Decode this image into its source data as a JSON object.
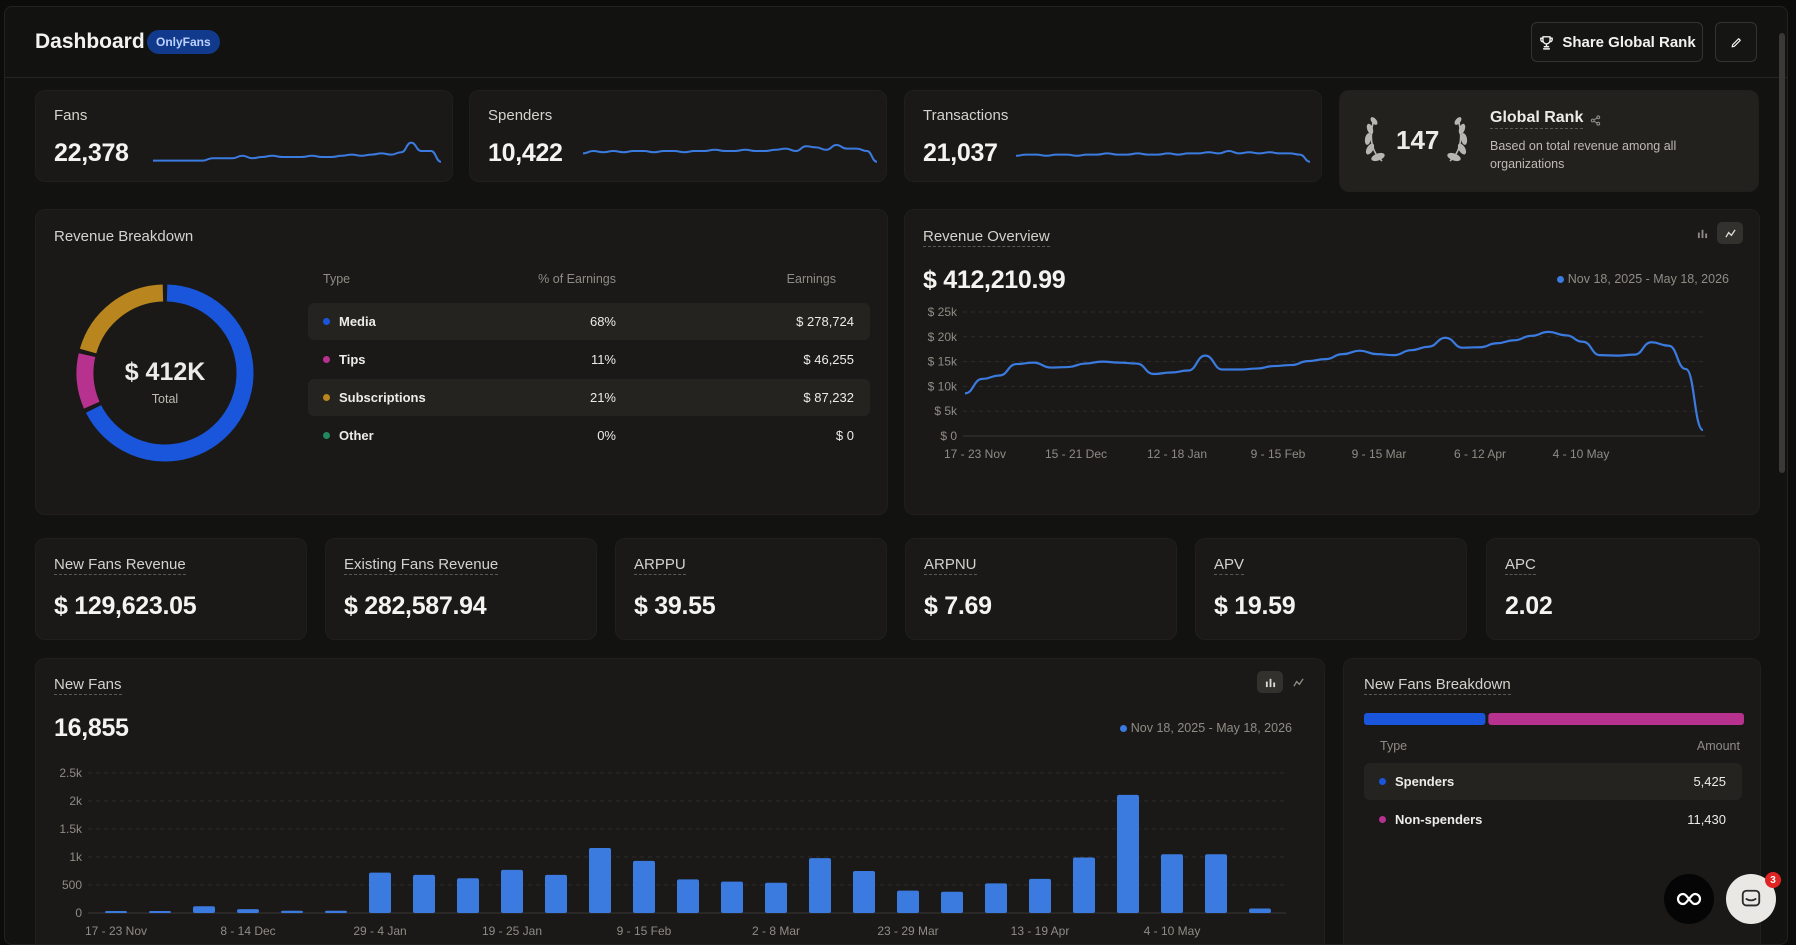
{
  "header": {
    "title": "Dashboard",
    "badge": "OnlyFans",
    "share_label": "Share Global Rank"
  },
  "stats": [
    {
      "label": "Fans",
      "value": "22,378",
      "trend": [
        0.1,
        0.1,
        0.1,
        0.1,
        0.1,
        0.1,
        0.2,
        0.2,
        0.2,
        0.3,
        0.2,
        0.25,
        0.3,
        0.25,
        0.25,
        0.25,
        0.3,
        0.25,
        0.25,
        0.3,
        0.35,
        0.3,
        0.35,
        0.4,
        0.35,
        0.45,
        0.85,
        0.5,
        0.5,
        0.05
      ]
    },
    {
      "label": "Spenders",
      "value": "10,422",
      "trend": [
        0.4,
        0.5,
        0.45,
        0.5,
        0.45,
        0.5,
        0.5,
        0.45,
        0.5,
        0.5,
        0.45,
        0.5,
        0.5,
        0.55,
        0.5,
        0.5,
        0.55,
        0.5,
        0.5,
        0.55,
        0.6,
        0.5,
        0.7,
        0.65,
        0.55,
        0.75,
        0.6,
        0.6,
        0.5,
        0.05
      ]
    },
    {
      "label": "Transactions",
      "value": "21,037",
      "trend": [
        0.3,
        0.35,
        0.35,
        0.3,
        0.35,
        0.35,
        0.3,
        0.35,
        0.35,
        0.4,
        0.35,
        0.35,
        0.4,
        0.35,
        0.35,
        0.4,
        0.35,
        0.4,
        0.4,
        0.45,
        0.4,
        0.5,
        0.4,
        0.45,
        0.4,
        0.45,
        0.4,
        0.4,
        0.35,
        0.05
      ]
    }
  ],
  "global_rank": {
    "rank": "147",
    "title": "Global Rank",
    "desc": "Based on total revenue among all organizations"
  },
  "revenue_breakdown": {
    "title": "Revenue Breakdown",
    "total": "$ 412K",
    "total_label": "Total",
    "columns": [
      "Type",
      "% of Earnings",
      "Earnings"
    ],
    "rows": [
      {
        "type": "Media",
        "pct": "68%",
        "earnings": "$ 278,724",
        "color": "#1a56db"
      },
      {
        "type": "Tips",
        "pct": "11%",
        "earnings": "$ 46,255",
        "color": "#b7318f"
      },
      {
        "type": "Subscriptions",
        "pct": "21%",
        "earnings": "$ 87,232",
        "color": "#b8851f"
      },
      {
        "type": "Other",
        "pct": "0%",
        "earnings": "$ 0",
        "color": "#20895f"
      }
    ]
  },
  "chart_data": [
    {
      "type": "pie",
      "title": "Revenue Breakdown",
      "categories": [
        "Media",
        "Tips",
        "Subscriptions",
        "Other"
      ],
      "values": [
        68,
        11,
        21,
        0
      ],
      "colors": [
        "#1a56db",
        "#b7318f",
        "#b8851f",
        "#20895f"
      ]
    },
    {
      "type": "line",
      "title": "Revenue Overview",
      "x_ticks": [
        "17 - 23 Nov",
        "15 - 21 Dec",
        "12 - 18 Jan",
        "9 - 15 Feb",
        "9 - 15 Mar",
        "6 - 12 Apr",
        "4 - 10 May"
      ],
      "y_ticks": [
        "$ 0",
        "$ 5k",
        "$ 10k",
        "$ 15k",
        "$ 20k",
        "$ 25k"
      ],
      "ylim": [
        0,
        25000
      ],
      "series": [
        {
          "values": [
            8600,
            11500,
            12200,
            14500,
            14800,
            13800,
            13900,
            14600,
            15000,
            14800,
            14600,
            12500,
            12800,
            13200,
            16200,
            13400,
            13400,
            13600,
            14100,
            14300,
            15100,
            15500,
            16500,
            17200,
            16500,
            16300,
            17300,
            18000,
            19800,
            17800,
            17900,
            18700,
            19300,
            20200,
            21000,
            20300,
            19000,
            16300,
            16200,
            16400,
            18900,
            18200,
            13500,
            1200
          ]
        }
      ],
      "range": "Nov 18, 2025 - May 18, 2026",
      "grid": true
    },
    {
      "type": "bar",
      "title": "New Fans",
      "x_ticks": [
        "17 - 23 Nov",
        "8 - 14 Dec",
        "29 - 4 Jan",
        "19 - 25 Jan",
        "9 - 15 Feb",
        "2 - 8 Mar",
        "23 - 29 Mar",
        "13 - 19 Apr",
        "4 - 10 May"
      ],
      "y_ticks": [
        "0",
        "500",
        "1k",
        "1.5k",
        "2k",
        "2.5k"
      ],
      "ylim": [
        0,
        2500
      ],
      "series": [
        {
          "values": [
            15,
            35,
            120,
            70,
            40,
            40,
            720,
            680,
            620,
            770,
            680,
            1160,
            930,
            600,
            560,
            540,
            980,
            750,
            400,
            380,
            530,
            610,
            990,
            2110,
            1050,
            1050,
            80
          ]
        }
      ],
      "range": "Nov 18, 2025 - May 18, 2026",
      "grid": true
    },
    {
      "type": "bar",
      "title": "New Fans Breakdown",
      "categories": [
        "Spenders",
        "Non-spenders"
      ],
      "values": [
        5425,
        11430
      ],
      "colors": [
        "#1a56db",
        "#b7318f"
      ]
    }
  ],
  "revenue_overview": {
    "title": "Revenue Overview",
    "value": "$ 412,210.99",
    "range": "Nov 18, 2025 - May 18, 2026"
  },
  "metrics": [
    {
      "label": "New Fans Revenue",
      "value": "$ 129,623.05"
    },
    {
      "label": "Existing Fans Revenue",
      "value": "$ 282,587.94"
    },
    {
      "label": "ARPPU",
      "value": "$ 39.55"
    },
    {
      "label": "ARPNU",
      "value": "$ 7.69"
    },
    {
      "label": "APV",
      "value": "$ 19.59"
    },
    {
      "label": "APC",
      "value": "2.02"
    }
  ],
  "new_fans": {
    "title": "New Fans",
    "value": "16,855",
    "range": "Nov 18, 2025 - May 18, 2026"
  },
  "new_fans_breakdown": {
    "title": "New Fans Breakdown",
    "columns": [
      "Type",
      "Amount"
    ],
    "rows": [
      {
        "type": "Spenders",
        "amount": "5,425",
        "color": "#1a56db"
      },
      {
        "type": "Non-spenders",
        "amount": "11,430",
        "color": "#b7318f"
      }
    ]
  },
  "chat": {
    "badge_count": "3"
  },
  "colors": {
    "accent": "#3b7be0",
    "background": "#121210",
    "card": "#1a1917"
  }
}
